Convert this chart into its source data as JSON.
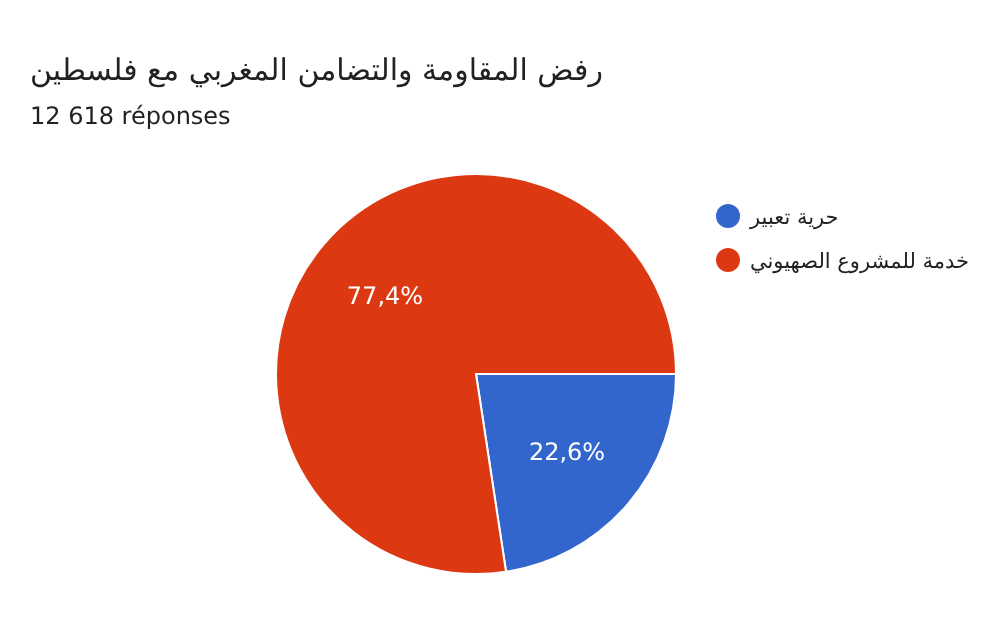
{
  "chart_data": {
    "type": "pie",
    "title": "رفض المقاومة والتضامن المغربي مع فلسطين",
    "subtitle": "12 618 réponses",
    "categories": [
      "حرية تعبير",
      "خدمة للمشروع الصهيوني"
    ],
    "values": [
      22.6,
      77.4
    ],
    "colors": [
      "#3366cc",
      "#dc3912"
    ],
    "value_labels": [
      "22,6%",
      "77,4%"
    ],
    "legend": "right"
  }
}
